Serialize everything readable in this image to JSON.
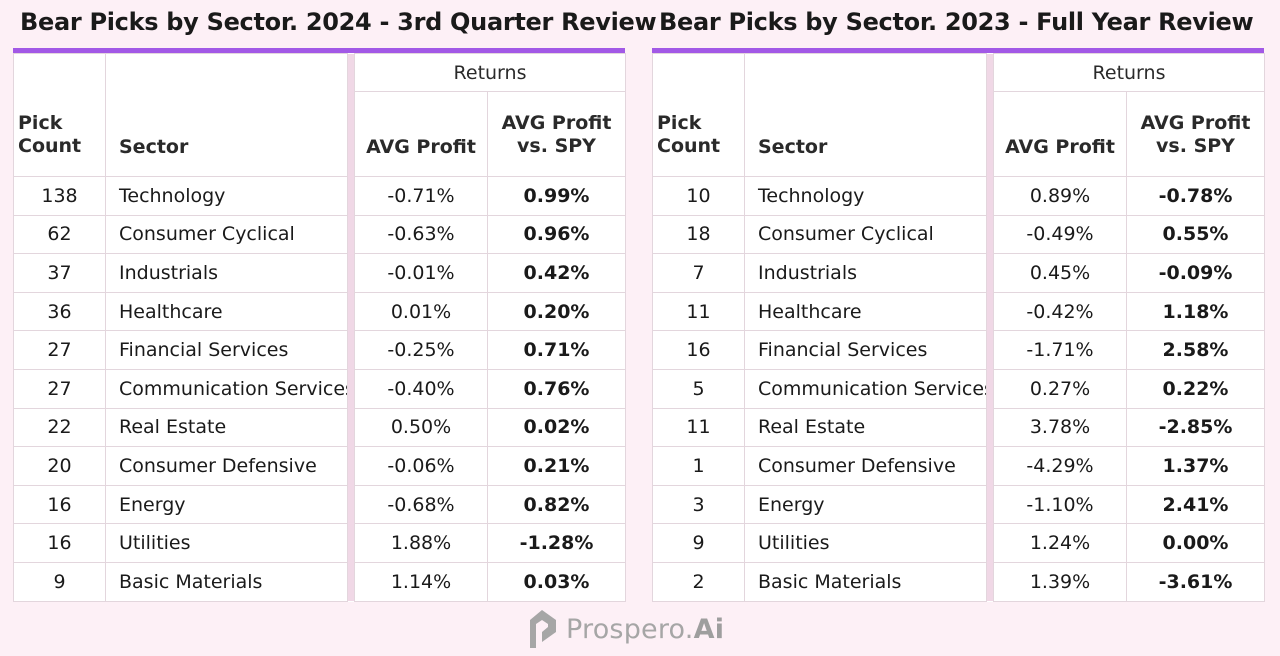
{
  "panels": [
    {
      "title": "Bear Picks by Sector.  2024 - 3rd Quarter Review",
      "headers": {
        "returns": "Returns",
        "pick_count": "Pick Count",
        "sector": "Sector",
        "avg_profit": "AVG Profit",
        "avg_profit_vs_spy": "AVG Profit vs. SPY"
      },
      "rows": [
        {
          "count": "138",
          "sector": "Technology",
          "avg": "-0.71%",
          "spy": "0.99%"
        },
        {
          "count": "62",
          "sector": "Consumer Cyclical",
          "avg": "-0.63%",
          "spy": "0.96%"
        },
        {
          "count": "37",
          "sector": "Industrials",
          "avg": "-0.01%",
          "spy": "0.42%"
        },
        {
          "count": "36",
          "sector": "Healthcare",
          "avg": "0.01%",
          "spy": "0.20%"
        },
        {
          "count": "27",
          "sector": "Financial Services",
          "avg": "-0.25%",
          "spy": "0.71%"
        },
        {
          "count": "27",
          "sector": "Communication Services",
          "avg": "-0.40%",
          "spy": "0.76%"
        },
        {
          "count": "22",
          "sector": "Real Estate",
          "avg": "0.50%",
          "spy": "0.02%"
        },
        {
          "count": "20",
          "sector": "Consumer Defensive",
          "avg": "-0.06%",
          "spy": "0.21%"
        },
        {
          "count": "16",
          "sector": "Energy",
          "avg": "-0.68%",
          "spy": "0.82%"
        },
        {
          "count": "16",
          "sector": "Utilities",
          "avg": "1.88%",
          "spy": "-1.28%"
        },
        {
          "count": "9",
          "sector": "Basic Materials",
          "avg": "1.14%",
          "spy": "0.03%"
        }
      ]
    },
    {
      "title": "Bear Picks by Sector.  2023 - Full Year Review",
      "headers": {
        "returns": "Returns",
        "pick_count": "Pick Count",
        "sector": "Sector",
        "avg_profit": "AVG Profit",
        "avg_profit_vs_spy": "AVG Profit vs. SPY"
      },
      "rows": [
        {
          "count": "10",
          "sector": "Technology",
          "avg": "0.89%",
          "spy": "-0.78%"
        },
        {
          "count": "18",
          "sector": "Consumer Cyclical",
          "avg": "-0.49%",
          "spy": "0.55%"
        },
        {
          "count": "7",
          "sector": "Industrials",
          "avg": "0.45%",
          "spy": "-0.09%"
        },
        {
          "count": "11",
          "sector": "Healthcare",
          "avg": "-0.42%",
          "spy": "1.18%"
        },
        {
          "count": "16",
          "sector": "Financial Services",
          "avg": "-1.71%",
          "spy": "2.58%"
        },
        {
          "count": "5",
          "sector": "Communication Services",
          "avg": "0.27%",
          "spy": "0.22%"
        },
        {
          "count": "11",
          "sector": "Real Estate",
          "avg": "3.78%",
          "spy": "-2.85%"
        },
        {
          "count": "1",
          "sector": "Consumer Defensive",
          "avg": "-4.29%",
          "spy": "1.37%"
        },
        {
          "count": "3",
          "sector": "Energy",
          "avg": "-1.10%",
          "spy": "2.41%"
        },
        {
          "count": "9",
          "sector": "Utilities",
          "avg": "1.24%",
          "spy": "0.00%"
        },
        {
          "count": "2",
          "sector": "Basic Materials",
          "avg": "1.39%",
          "spy": "-3.61%"
        }
      ]
    }
  ],
  "brand": {
    "name": "Prospero.",
    "suffix": "Ai",
    "icon": "prospero-logo-icon"
  },
  "colors": {
    "background": "#fdf0f6",
    "accent": "#a259e6",
    "separator": "#f0d8e6"
  }
}
